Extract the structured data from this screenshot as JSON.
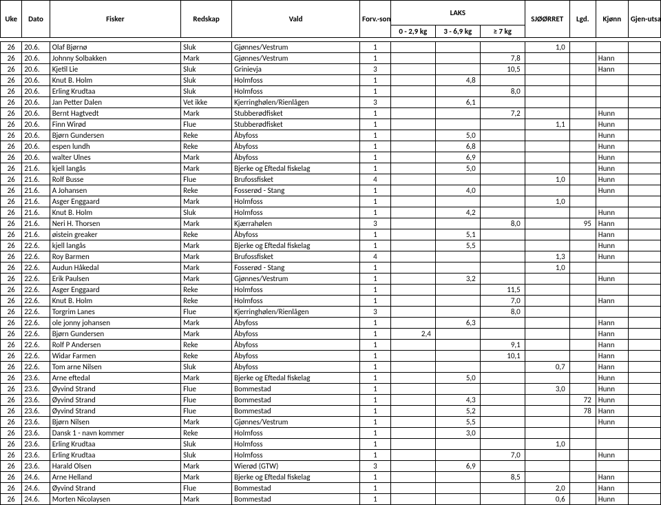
{
  "header": {
    "uke": "Uke",
    "dato": "Dato",
    "fisker": "Fisker",
    "redskap": "Redskap",
    "vald": "Vald",
    "forv": "Forv.-sone",
    "laks": "LAKS",
    "laks_ranges": [
      "0 - 2,9 kg",
      "3 - 6,9 kg",
      "≥ 7 kg"
    ],
    "sjo": "SJØØRRET",
    "lgd": "Lgd.",
    "kjonn": "Kjønn",
    "gjen": "Gjen-utsatt"
  },
  "rows": [
    {
      "uke": "26",
      "dato": "20.6.",
      "fisker": "Olaf Bjørnø",
      "redskap": "Sluk",
      "vald": "Gjønnes/Vestrum",
      "forv": "1",
      "l1": "",
      "l2": "",
      "l3": "",
      "sjo": "1,0",
      "lgd": "",
      "kjonn": "",
      "gjen": ""
    },
    {
      "uke": "26",
      "dato": "20.6.",
      "fisker": "Johnny Solbakken",
      "redskap": "Mark",
      "vald": "Gjønnes/Vestrum",
      "forv": "1",
      "l1": "",
      "l2": "",
      "l3": "7,8",
      "sjo": "",
      "lgd": "",
      "kjonn": "Hann",
      "gjen": ""
    },
    {
      "uke": "26",
      "dato": "20.6.",
      "fisker": "Kjetil Lie",
      "redskap": "Sluk",
      "vald": "Grinievja",
      "forv": "3",
      "l1": "",
      "l2": "",
      "l3": "10,5",
      "sjo": "",
      "lgd": "",
      "kjonn": "Hann",
      "gjen": ""
    },
    {
      "uke": "26",
      "dato": "20.6.",
      "fisker": "Knut B. Holm",
      "redskap": "Sluk",
      "vald": "Holmfoss",
      "forv": "1",
      "l1": "",
      "l2": "4,8",
      "l3": "",
      "sjo": "",
      "lgd": "",
      "kjonn": "",
      "gjen": ""
    },
    {
      "uke": "26",
      "dato": "20.6.",
      "fisker": "Erling Krudtaa",
      "redskap": "Sluk",
      "vald": "Holmfoss",
      "forv": "1",
      "l1": "",
      "l2": "",
      "l3": "8,0",
      "sjo": "",
      "lgd": "",
      "kjonn": "",
      "gjen": ""
    },
    {
      "uke": "26",
      "dato": "20.6.",
      "fisker": "Jan Petter Dalen",
      "redskap": "Vet ikke",
      "vald": "Kjerringhølen/Rienlågen",
      "forv": "3",
      "l1": "",
      "l2": "6,1",
      "l3": "",
      "sjo": "",
      "lgd": "",
      "kjonn": "",
      "gjen": ""
    },
    {
      "uke": "26",
      "dato": "20.6.",
      "fisker": "Bernt Hagtvedt",
      "redskap": "Mark",
      "vald": "Stubberødfisket",
      "forv": "1",
      "l1": "",
      "l2": "",
      "l3": "7,2",
      "sjo": "",
      "lgd": "",
      "kjonn": "Hunn",
      "gjen": ""
    },
    {
      "uke": "26",
      "dato": "20.6.",
      "fisker": "Finn Wirød",
      "redskap": "Flue",
      "vald": "Stubberødfisket",
      "forv": "1",
      "l1": "",
      "l2": "",
      "l3": "",
      "sjo": "1,1",
      "lgd": "",
      "kjonn": "Hunn",
      "gjen": ""
    },
    {
      "uke": "26",
      "dato": "20.6.",
      "fisker": "Bjørn Gundersen",
      "redskap": "Reke",
      "vald": "Åbyfoss",
      "forv": "1",
      "l1": "",
      "l2": "5,0",
      "l3": "",
      "sjo": "",
      "lgd": "",
      "kjonn": "Hunn",
      "gjen": ""
    },
    {
      "uke": "26",
      "dato": "20.6.",
      "fisker": "espen lundh",
      "redskap": "Reke",
      "vald": "Åbyfoss",
      "forv": "1",
      "l1": "",
      "l2": "6,8",
      "l3": "",
      "sjo": "",
      "lgd": "",
      "kjonn": "Hunn",
      "gjen": ""
    },
    {
      "uke": "26",
      "dato": "20.6.",
      "fisker": "walter Ulnes",
      "redskap": "Mark",
      "vald": "Åbyfoss",
      "forv": "1",
      "l1": "",
      "l2": "6,9",
      "l3": "",
      "sjo": "",
      "lgd": "",
      "kjonn": "Hunn",
      "gjen": ""
    },
    {
      "uke": "26",
      "dato": "21.6.",
      "fisker": "kjell langås",
      "redskap": "Mark",
      "vald": "Bjerke og Eftedal fiskelag",
      "forv": "1",
      "l1": "",
      "l2": "5,0",
      "l3": "",
      "sjo": "",
      "lgd": "",
      "kjonn": "Hunn",
      "gjen": ""
    },
    {
      "uke": "26",
      "dato": "21.6.",
      "fisker": "Rolf Busse",
      "redskap": "Flue",
      "vald": "Brufossfisket",
      "forv": "4",
      "l1": "",
      "l2": "",
      "l3": "",
      "sjo": "1,0",
      "lgd": "",
      "kjonn": "Hunn",
      "gjen": ""
    },
    {
      "uke": "26",
      "dato": "21.6.",
      "fisker": "A Johansen",
      "redskap": "Reke",
      "vald": "Fosserød - Stang",
      "forv": "1",
      "l1": "",
      "l2": "4,0",
      "l3": "",
      "sjo": "",
      "lgd": "",
      "kjonn": "Hunn",
      "gjen": ""
    },
    {
      "uke": "26",
      "dato": "21.6.",
      "fisker": "Asger Enggaard",
      "redskap": "Mark",
      "vald": "Holmfoss",
      "forv": "1",
      "l1": "",
      "l2": "",
      "l3": "",
      "sjo": "1,0",
      "lgd": "",
      "kjonn": "",
      "gjen": ""
    },
    {
      "uke": "26",
      "dato": "21.6.",
      "fisker": "Knut B. Holm",
      "redskap": "Sluk",
      "vald": "Holmfoss",
      "forv": "1",
      "l1": "",
      "l2": "4,2",
      "l3": "",
      "sjo": "",
      "lgd": "",
      "kjonn": "Hunn",
      "gjen": ""
    },
    {
      "uke": "26",
      "dato": "21.6.",
      "fisker": "Neri H. Thorsen",
      "redskap": "Mark",
      "vald": "Kjærrahølen",
      "forv": "3",
      "l1": "",
      "l2": "",
      "l3": "8,0",
      "sjo": "",
      "lgd": "95",
      "kjonn": "Hann",
      "gjen": ""
    },
    {
      "uke": "26",
      "dato": "21.6.",
      "fisker": "øistein greaker",
      "redskap": "Reke",
      "vald": "Åbyfoss",
      "forv": "1",
      "l1": "",
      "l2": "5,1",
      "l3": "",
      "sjo": "",
      "lgd": "",
      "kjonn": "Hann",
      "gjen": ""
    },
    {
      "uke": "26",
      "dato": "22.6.",
      "fisker": "kjell langås",
      "redskap": "Mark",
      "vald": "Bjerke og Eftedal fiskelag",
      "forv": "1",
      "l1": "",
      "l2": "5,5",
      "l3": "",
      "sjo": "",
      "lgd": "",
      "kjonn": "Hunn",
      "gjen": ""
    },
    {
      "uke": "26",
      "dato": "22.6.",
      "fisker": "Roy Barmen",
      "redskap": "Mark",
      "vald": "Brufossfisket",
      "forv": "4",
      "l1": "",
      "l2": "",
      "l3": "",
      "sjo": "1,3",
      "lgd": "",
      "kjonn": "Hunn",
      "gjen": ""
    },
    {
      "uke": "26",
      "dato": "22.6.",
      "fisker": "Audun Håkedal",
      "redskap": "Mark",
      "vald": "Fosserød - Stang",
      "forv": "1",
      "l1": "",
      "l2": "",
      "l3": "",
      "sjo": "1,0",
      "lgd": "",
      "kjonn": "",
      "gjen": ""
    },
    {
      "uke": "26",
      "dato": "22.6.",
      "fisker": "Erik Paulsen",
      "redskap": "Mark",
      "vald": "Gjønnes/Vestrum",
      "forv": "1",
      "l1": "",
      "l2": "3,2",
      "l3": "",
      "sjo": "",
      "lgd": "",
      "kjonn": "Hunn",
      "gjen": ""
    },
    {
      "uke": "26",
      "dato": "22.6.",
      "fisker": "Asger Enggaard",
      "redskap": "Reke",
      "vald": "Holmfoss",
      "forv": "1",
      "l1": "",
      "l2": "",
      "l3": "11,5",
      "sjo": "",
      "lgd": "",
      "kjonn": "",
      "gjen": ""
    },
    {
      "uke": "26",
      "dato": "22.6.",
      "fisker": "Knut B. Holm",
      "redskap": "Reke",
      "vald": "Holmfoss",
      "forv": "1",
      "l1": "",
      "l2": "",
      "l3": "7,0",
      "sjo": "",
      "lgd": "",
      "kjonn": "Hann",
      "gjen": ""
    },
    {
      "uke": "26",
      "dato": "22.6.",
      "fisker": "Torgrim Lanes",
      "redskap": "Flue",
      "vald": "Kjerringhølen/Rienlågen",
      "forv": "3",
      "l1": "",
      "l2": "",
      "l3": "8,0",
      "sjo": "",
      "lgd": "",
      "kjonn": "",
      "gjen": ""
    },
    {
      "uke": "26",
      "dato": "22.6.",
      "fisker": "ole jonny johansen",
      "redskap": "Mark",
      "vald": "Åbyfoss",
      "forv": "1",
      "l1": "",
      "l2": "6,3",
      "l3": "",
      "sjo": "",
      "lgd": "",
      "kjonn": "Hann",
      "gjen": ""
    },
    {
      "uke": "26",
      "dato": "22.6.",
      "fisker": "Bjørn Gundersen",
      "redskap": "Mark",
      "vald": "Åbyfoss",
      "forv": "1",
      "l1": "2,4",
      "l2": "",
      "l3": "",
      "sjo": "",
      "lgd": "",
      "kjonn": "Hann",
      "gjen": ""
    },
    {
      "uke": "26",
      "dato": "22.6.",
      "fisker": "Rolf P Andersen",
      "redskap": "Reke",
      "vald": "Åbyfoss",
      "forv": "1",
      "l1": "",
      "l2": "",
      "l3": "9,1",
      "sjo": "",
      "lgd": "",
      "kjonn": "Hann",
      "gjen": ""
    },
    {
      "uke": "26",
      "dato": "22.6.",
      "fisker": "Widar Farmen",
      "redskap": "Reke",
      "vald": "Åbyfoss",
      "forv": "1",
      "l1": "",
      "l2": "",
      "l3": "10,1",
      "sjo": "",
      "lgd": "",
      "kjonn": "Hann",
      "gjen": ""
    },
    {
      "uke": "26",
      "dato": "22.6.",
      "fisker": "Tom arne Nilsen",
      "redskap": "Sluk",
      "vald": "Åbyfoss",
      "forv": "1",
      "l1": "",
      "l2": "",
      "l3": "",
      "sjo": "0,7",
      "lgd": "",
      "kjonn": "Hann",
      "gjen": ""
    },
    {
      "uke": "26",
      "dato": "23.6.",
      "fisker": "Arne eftedal",
      "redskap": "Mark",
      "vald": "Bjerke og Eftedal fiskelag",
      "forv": "1",
      "l1": "",
      "l2": "5,0",
      "l3": "",
      "sjo": "",
      "lgd": "",
      "kjonn": "Hunn",
      "gjen": ""
    },
    {
      "uke": "26",
      "dato": "23.6.",
      "fisker": "Øyvind Strand",
      "redskap": "Flue",
      "vald": "Bommestad",
      "forv": "1",
      "l1": "",
      "l2": "",
      "l3": "",
      "sjo": "3,0",
      "lgd": "",
      "kjonn": "Hunn",
      "gjen": ""
    },
    {
      "uke": "26",
      "dato": "23.6.",
      "fisker": "Øyvind Strand",
      "redskap": "Flue",
      "vald": "Bommestad",
      "forv": "1",
      "l1": "",
      "l2": "4,3",
      "l3": "",
      "sjo": "",
      "lgd": "72",
      "kjonn": "Hunn",
      "gjen": ""
    },
    {
      "uke": "26",
      "dato": "23.6.",
      "fisker": "Øyvind Strand",
      "redskap": "Flue",
      "vald": "Bommestad",
      "forv": "1",
      "l1": "",
      "l2": "5,2",
      "l3": "",
      "sjo": "",
      "lgd": "78",
      "kjonn": "Hann",
      "gjen": ""
    },
    {
      "uke": "26",
      "dato": "23.6.",
      "fisker": "Bjørn Nilsen",
      "redskap": "Mark",
      "vald": "Gjønnes/Vestrum",
      "forv": "1",
      "l1": "",
      "l2": "5,5",
      "l3": "",
      "sjo": "",
      "lgd": "",
      "kjonn": "Hunn",
      "gjen": ""
    },
    {
      "uke": "26",
      "dato": "23.6.",
      "fisker": "Dansk 1 - navn kommer",
      "redskap": "Reke",
      "vald": "Holmfoss",
      "forv": "1",
      "l1": "",
      "l2": "3,0",
      "l3": "",
      "sjo": "",
      "lgd": "",
      "kjonn": "",
      "gjen": ""
    },
    {
      "uke": "26",
      "dato": "23.6.",
      "fisker": "Erling Krudtaa",
      "redskap": "Sluk",
      "vald": "Holmfoss",
      "forv": "1",
      "l1": "",
      "l2": "",
      "l3": "",
      "sjo": "1,0",
      "lgd": "",
      "kjonn": "",
      "gjen": ""
    },
    {
      "uke": "26",
      "dato": "23.6.",
      "fisker": "Erling Krudtaa",
      "redskap": "Sluk",
      "vald": "Holmfoss",
      "forv": "1",
      "l1": "",
      "l2": "",
      "l3": "7,0",
      "sjo": "",
      "lgd": "",
      "kjonn": "Hunn",
      "gjen": ""
    },
    {
      "uke": "26",
      "dato": "23.6.",
      "fisker": "Harald Olsen",
      "redskap": "Mark",
      "vald": "Wierød (GTW)",
      "forv": "3",
      "l1": "",
      "l2": "6,9",
      "l3": "",
      "sjo": "",
      "lgd": "",
      "kjonn": "",
      "gjen": ""
    },
    {
      "uke": "26",
      "dato": "24.6.",
      "fisker": "Arne Helland",
      "redskap": "Mark",
      "vald": "Bjerke og Eftedal fiskelag",
      "forv": "1",
      "l1": "",
      "l2": "",
      "l3": "8,5",
      "sjo": "",
      "lgd": "",
      "kjonn": "Hann",
      "gjen": ""
    },
    {
      "uke": "26",
      "dato": "24.6.",
      "fisker": "Øyvind Strand",
      "redskap": "Flue",
      "vald": "Bommestad",
      "forv": "1",
      "l1": "",
      "l2": "",
      "l3": "",
      "sjo": "2,0",
      "lgd": "",
      "kjonn": "Hann",
      "gjen": ""
    },
    {
      "uke": "26",
      "dato": "24.6.",
      "fisker": "Morten Nicolaysen",
      "redskap": "Mark",
      "vald": "Bommestad",
      "forv": "1",
      "l1": "",
      "l2": "",
      "l3": "",
      "sjo": "0,6",
      "lgd": "",
      "kjonn": "Hunn",
      "gjen": ""
    }
  ]
}
